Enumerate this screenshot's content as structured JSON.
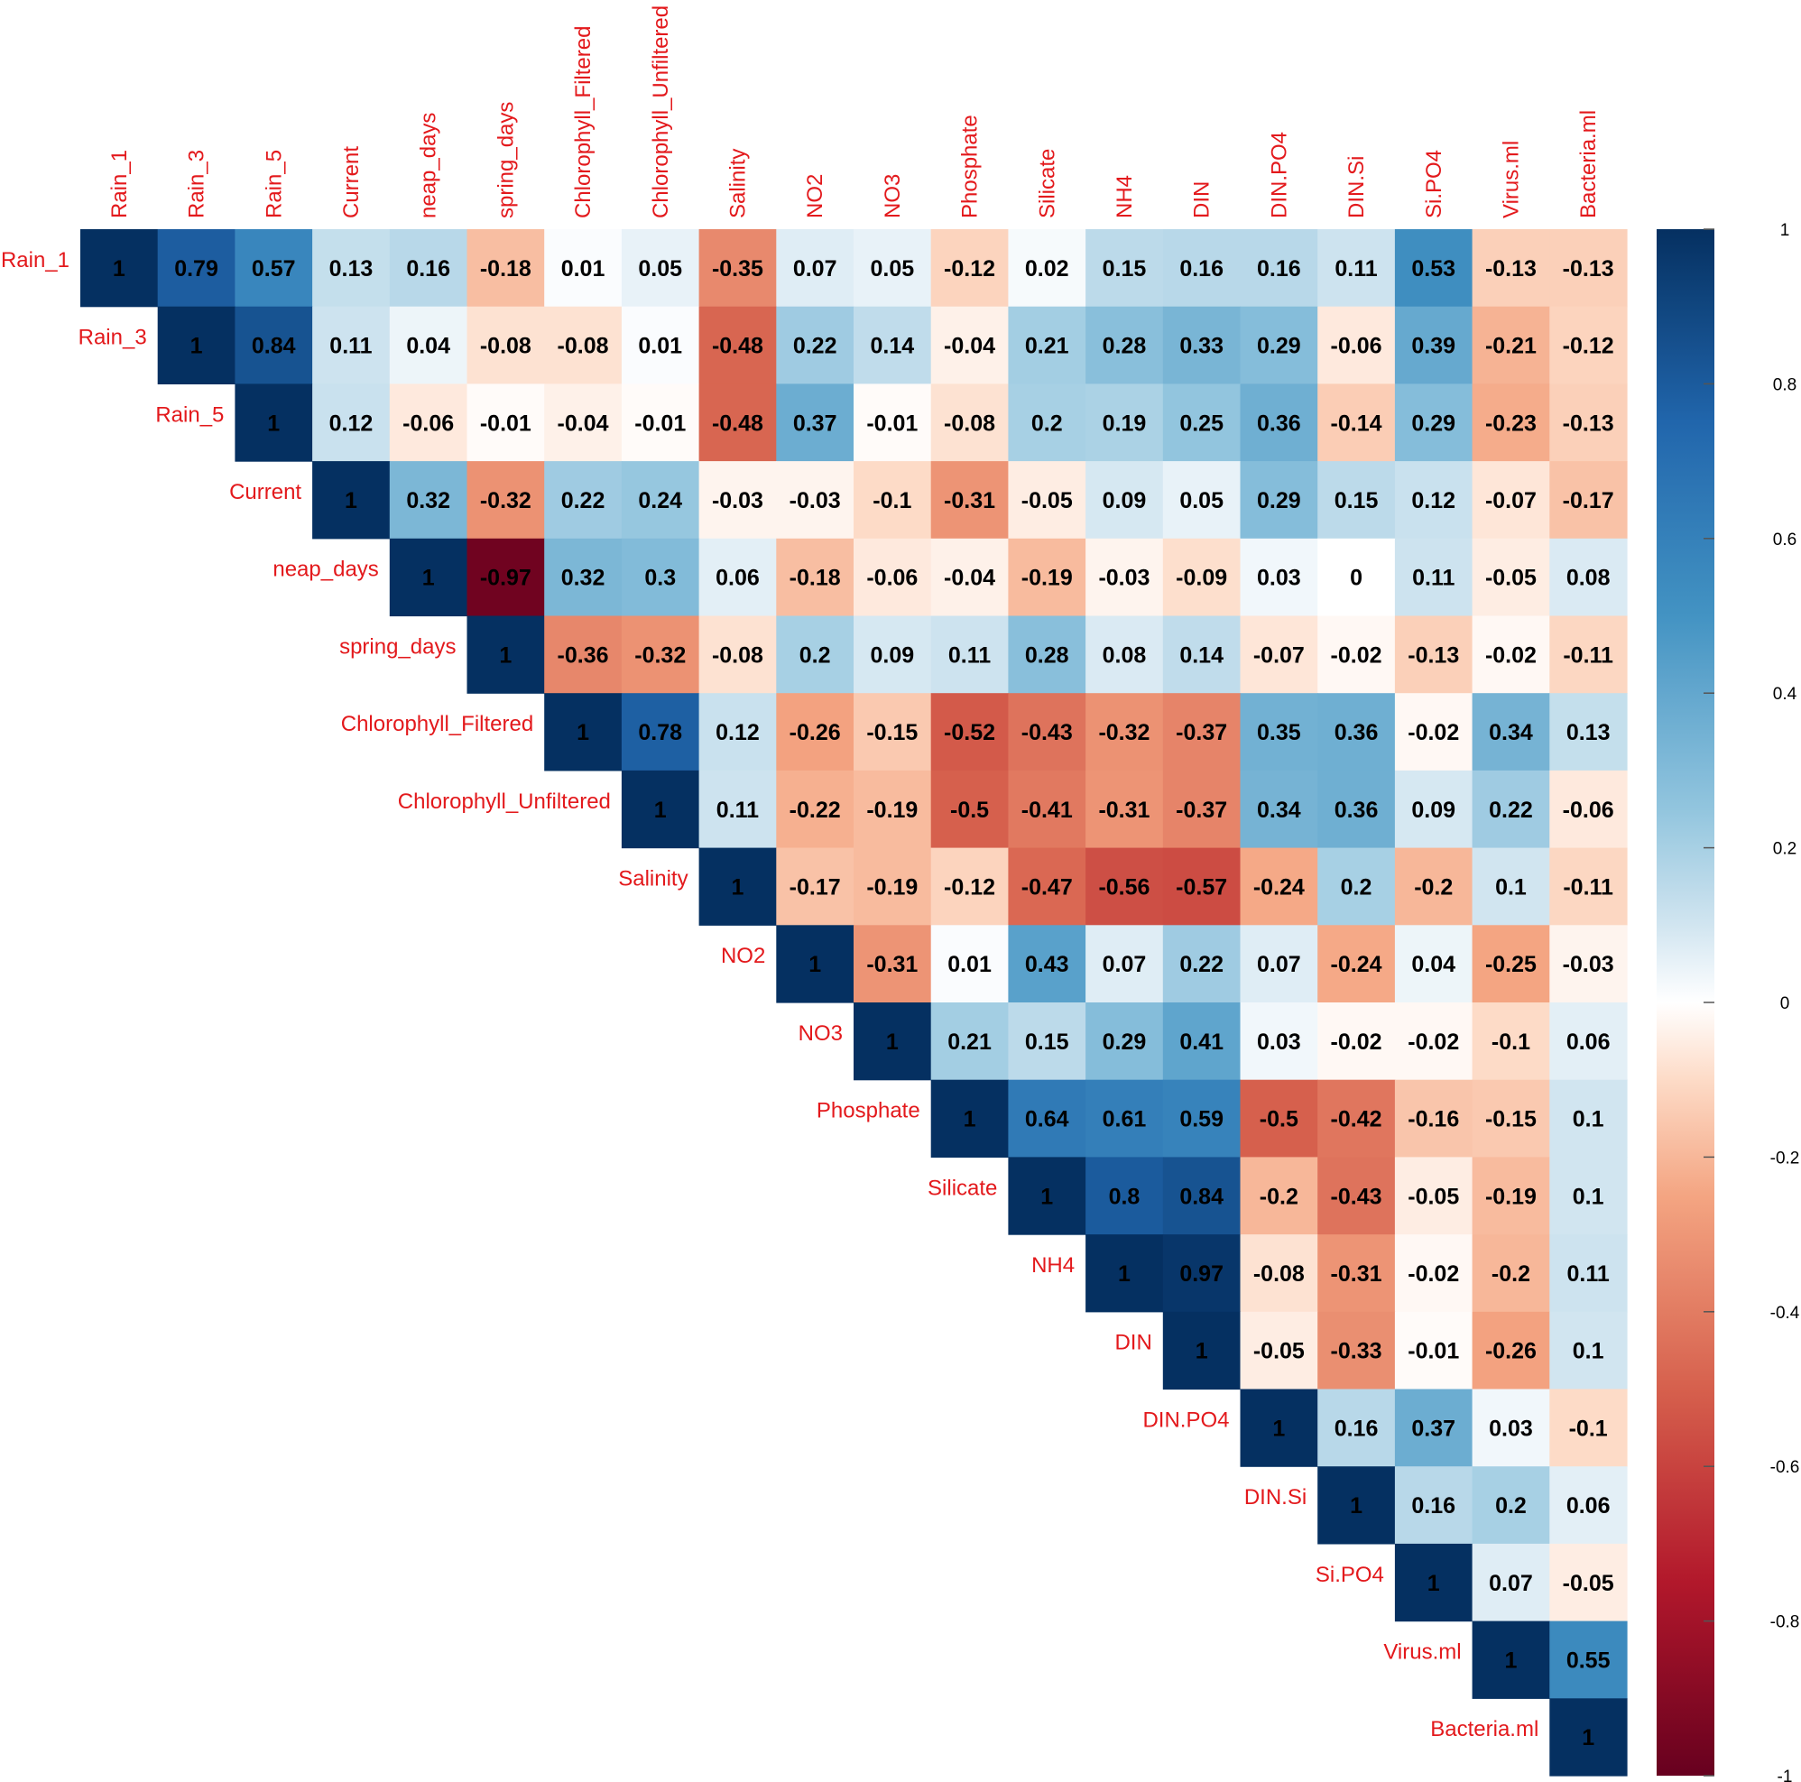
{
  "chart_data": {
    "type": "heatmap",
    "subtype": "correlation-upper-triangle",
    "variables": [
      "Rain_1",
      "Rain_3",
      "Rain_5",
      "Current",
      "neap_days",
      "spring_days",
      "Chlorophyll_Filtered",
      "Chlorophyll_Unfiltered",
      "Salinity",
      "NO2",
      "NO3",
      "Phosphate",
      "Silicate",
      "NH4",
      "DIN",
      "DIN.PO4",
      "DIN.Si",
      "Si.PO4",
      "Virus.ml",
      "Bacteria.ml"
    ],
    "matrix_upper": [
      [
        1,
        0.79,
        0.57,
        0.13,
        0.16,
        -0.18,
        0.01,
        0.05,
        -0.35,
        0.07,
        0.05,
        -0.12,
        0.02,
        0.15,
        0.16,
        0.16,
        0.11,
        0.53,
        -0.13,
        -0.13
      ],
      [
        1,
        0.84,
        0.11,
        0.04,
        -0.08,
        -0.08,
        0.01,
        -0.48,
        0.22,
        0.14,
        -0.04,
        0.21,
        0.28,
        0.33,
        0.29,
        -0.06,
        0.39,
        -0.21,
        -0.12
      ],
      [
        1,
        0.12,
        -0.06,
        -0.01,
        -0.04,
        -0.01,
        -0.48,
        0.37,
        -0.01,
        -0.08,
        0.2,
        0.19,
        0.25,
        0.36,
        -0.14,
        0.29,
        -0.23,
        -0.13
      ],
      [
        1,
        0.32,
        -0.32,
        0.22,
        0.24,
        -0.03,
        -0.03,
        -0.1,
        -0.31,
        -0.05,
        0.09,
        0.05,
        0.29,
        0.15,
        0.12,
        -0.07,
        -0.17
      ],
      [
        1,
        -0.97,
        0.32,
        0.3,
        0.06,
        -0.18,
        -0.06,
        -0.04,
        -0.19,
        -0.03,
        -0.09,
        0.03,
        0,
        0.11,
        -0.05,
        0.08
      ],
      [
        1,
        -0.36,
        -0.32,
        -0.08,
        0.2,
        0.09,
        0.11,
        0.28,
        0.08,
        0.14,
        -0.07,
        -0.02,
        -0.13,
        -0.02,
        -0.11
      ],
      [
        1,
        0.78,
        0.12,
        -0.26,
        -0.15,
        -0.52,
        -0.43,
        -0.32,
        -0.37,
        0.35,
        0.36,
        -0.02,
        0.34,
        0.13
      ],
      [
        1,
        0.11,
        -0.22,
        -0.19,
        -0.5,
        -0.41,
        -0.31,
        -0.37,
        0.34,
        0.36,
        0.09,
        0.22,
        -0.06
      ],
      [
        1,
        -0.17,
        -0.19,
        -0.12,
        -0.47,
        -0.56,
        -0.57,
        -0.24,
        0.2,
        -0.2,
        0.1,
        -0.11
      ],
      [
        1,
        -0.31,
        0.01,
        0.43,
        0.07,
        0.22,
        0.07,
        -0.24,
        0.04,
        -0.25,
        -0.03
      ],
      [
        1,
        0.21,
        0.15,
        0.29,
        0.41,
        0.03,
        -0.02,
        -0.02,
        -0.1,
        0.06
      ],
      [
        1,
        0.64,
        0.61,
        0.59,
        -0.5,
        -0.42,
        -0.16,
        -0.15,
        0.1
      ],
      [
        1,
        0.8,
        0.84,
        -0.2,
        -0.43,
        -0.05,
        -0.19,
        0.1
      ],
      [
        1,
        0.97,
        -0.08,
        -0.31,
        -0.02,
        -0.2,
        0.11
      ],
      [
        1,
        -0.05,
        -0.33,
        -0.01,
        -0.26,
        0.1
      ],
      [
        1,
        0.16,
        0.37,
        0.03,
        -0.1
      ],
      [
        1,
        0.16,
        0.2,
        0.06
      ],
      [
        1,
        0.07,
        -0.05
      ],
      [
        1,
        0.55
      ],
      [
        1
      ]
    ],
    "colorbar": {
      "range": [
        -1,
        1
      ],
      "ticks": [
        "1",
        "0.8",
        "0.6",
        "0.4",
        "0.2",
        "0",
        "-0.2",
        "-0.4",
        "-0.6",
        "-0.8",
        "-1"
      ]
    },
    "colors": {
      "negative": "#67001f",
      "neutral": "#ffffff",
      "positive": "#053061",
      "label": "#e3191c"
    }
  }
}
